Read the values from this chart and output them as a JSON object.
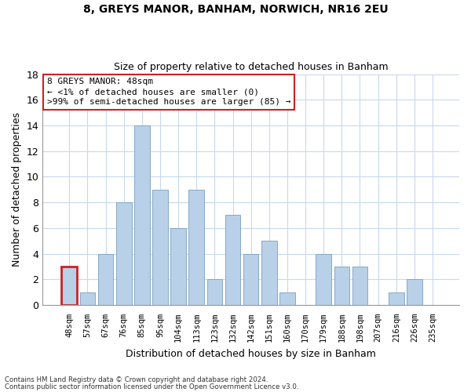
{
  "title": "8, GREYS MANOR, BANHAM, NORWICH, NR16 2EU",
  "subtitle": "Size of property relative to detached houses in Banham",
  "xlabel": "Distribution of detached houses by size in Banham",
  "ylabel": "Number of detached properties",
  "categories": [
    "48sqm",
    "57sqm",
    "67sqm",
    "76sqm",
    "85sqm",
    "95sqm",
    "104sqm",
    "113sqm",
    "123sqm",
    "132sqm",
    "142sqm",
    "151sqm",
    "160sqm",
    "170sqm",
    "179sqm",
    "188sqm",
    "198sqm",
    "207sqm",
    "216sqm",
    "226sqm",
    "235sqm"
  ],
  "values": [
    3,
    1,
    4,
    8,
    14,
    9,
    6,
    9,
    2,
    7,
    4,
    5,
    1,
    0,
    4,
    3,
    3,
    0,
    1,
    2,
    0
  ],
  "bar_color": "#b8d0e8",
  "highlight_bar_color": "#cc2222",
  "highlight_index": 0,
  "ylim": [
    0,
    18
  ],
  "yticks": [
    0,
    2,
    4,
    6,
    8,
    10,
    12,
    14,
    16,
    18
  ],
  "annotation_title": "8 GREYS MANOR: 48sqm",
  "annotation_line1": "← <1% of detached houses are smaller (0)",
  "annotation_line2": ">99% of semi-detached houses are larger (85) →",
  "footer_line1": "Contains HM Land Registry data © Crown copyright and database right 2024.",
  "footer_line2": "Contains public sector information licensed under the Open Government Licence v3.0.",
  "background_color": "#ffffff",
  "grid_color": "#c8d8ec"
}
